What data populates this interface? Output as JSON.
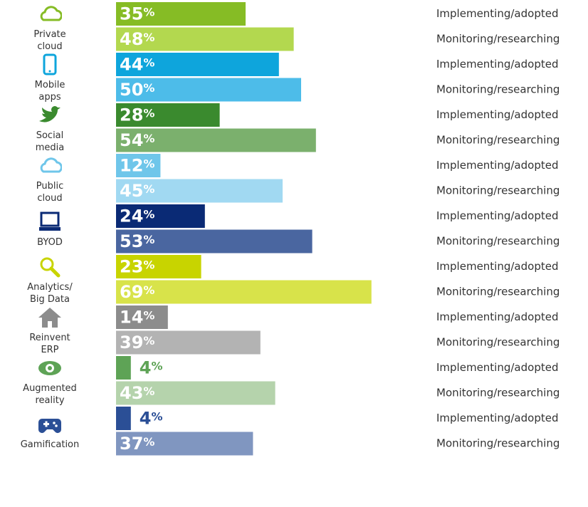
{
  "chart_data": {
    "type": "bar",
    "categories": [
      "Private\ncloud",
      "Mobile\napps",
      "Social\nmedia",
      "Public\ncloud",
      "BYOD",
      "Analytics/\nBig Data",
      "Reinvent\nERP",
      "Augmented\nreality",
      "Gamification"
    ],
    "series": [
      {
        "name": "Implementing/adopted",
        "colors": [
          "#86bc25",
          "#0ea5dc",
          "#3a8a2e",
          "#6fc6ea",
          "#0a2a75",
          "#c8d400",
          "#8c8c8c",
          "#5ea356",
          "#2b4f96"
        ],
        "values": [
          35,
          44,
          28,
          12,
          24,
          23,
          14,
          4,
          4
        ],
        "value_labels": [
          "35%",
          "44%",
          "28%",
          "12%",
          "24%",
          "23%",
          "14%",
          "4%",
          "4%"
        ]
      },
      {
        "name": "Monitoring/researching",
        "colors": [
          "#b3d84f",
          "#4dbce9",
          "#7bb06d",
          "#a1d9f2",
          "#4a66a0",
          "#d8e34a",
          "#b3b3b3",
          "#b5d3ac",
          "#8096c0"
        ],
        "values": [
          48,
          50,
          54,
          45,
          53,
          69,
          39,
          43,
          37
        ],
        "value_labels": [
          "48%",
          "50%",
          "54%",
          "45%",
          "53%",
          "69%",
          "39%",
          "43%",
          "37%"
        ]
      }
    ]
  }
}
